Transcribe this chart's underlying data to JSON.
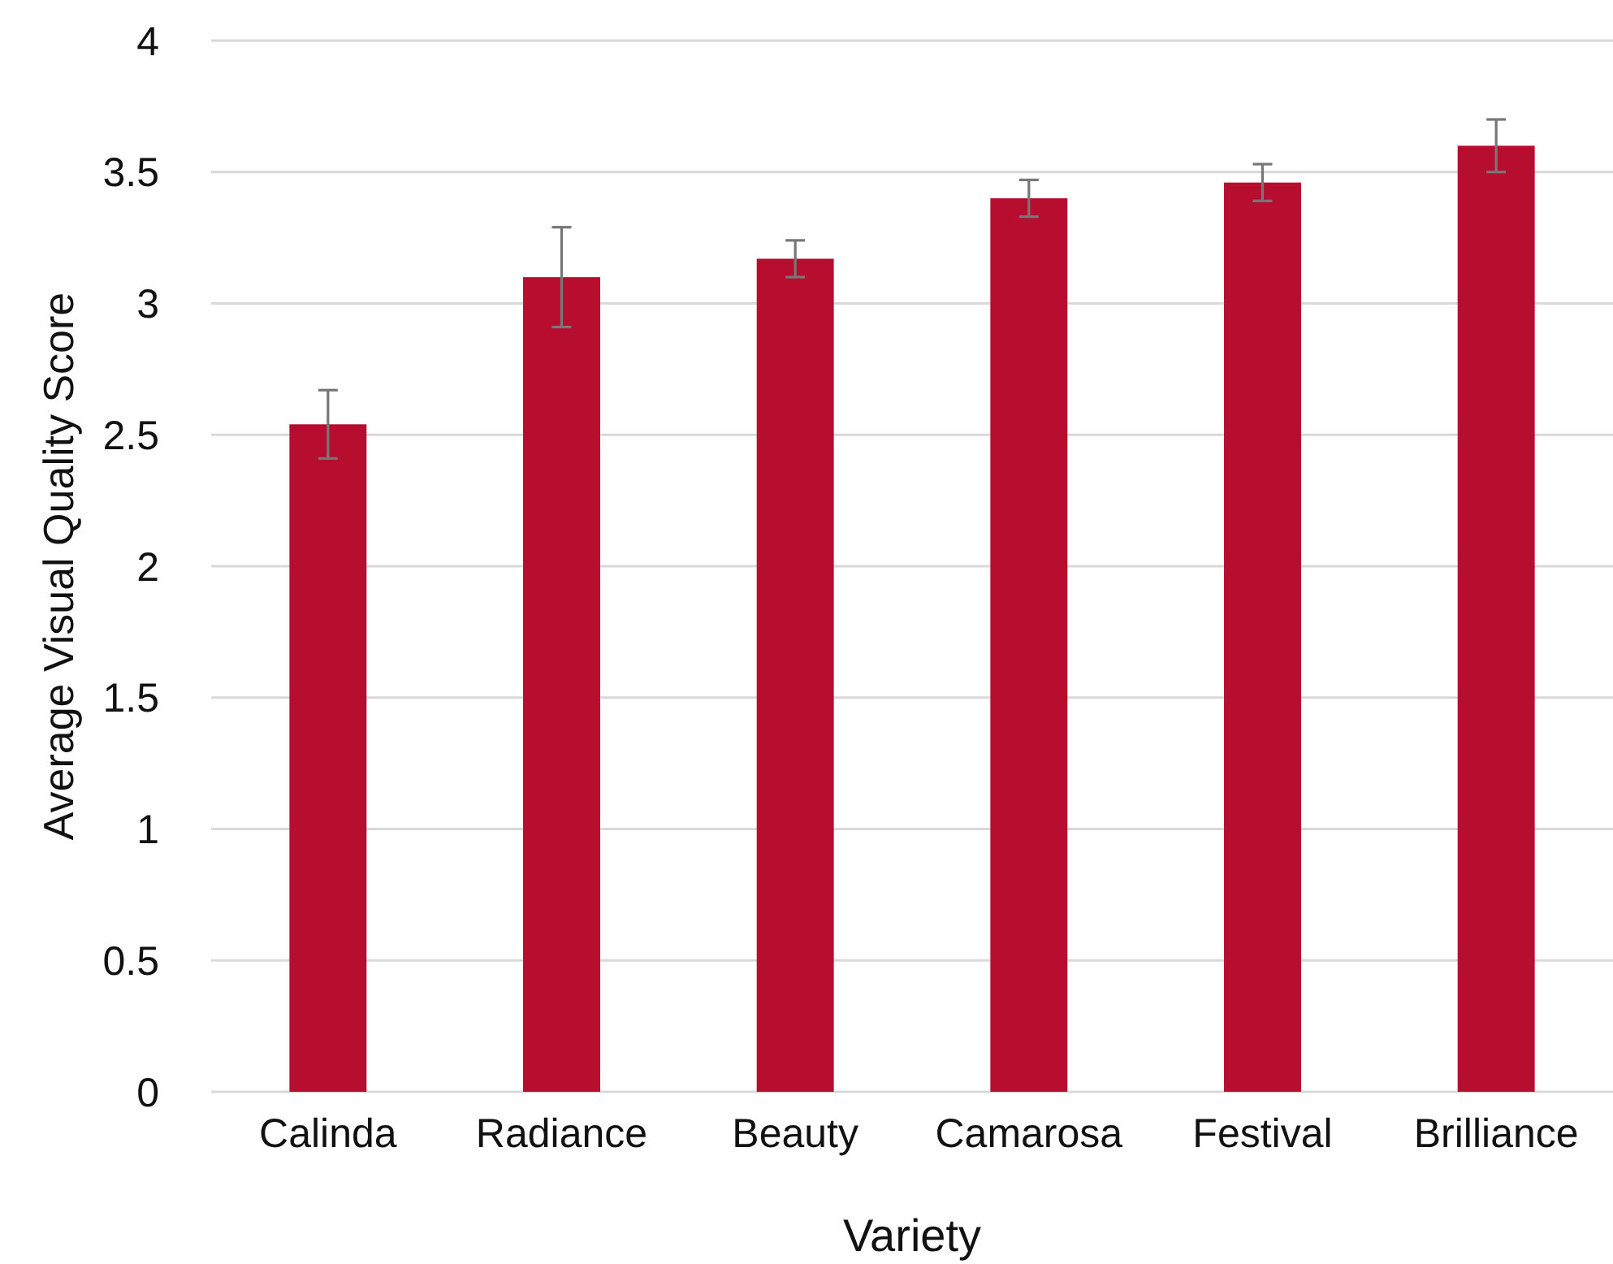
{
  "chart_data": {
    "type": "bar",
    "xlabel": "Variety",
    "ylabel": "Average Visual Quality Score",
    "categories": [
      "Calinda",
      "Radiance",
      "Beauty",
      "Camarosa",
      "Festival",
      "Brilliance"
    ],
    "values": [
      2.54,
      3.1,
      3.17,
      3.4,
      3.46,
      3.6
    ],
    "errors": [
      0.13,
      0.19,
      0.07,
      0.07,
      0.07,
      0.1
    ],
    "color": "#b70d2f",
    "ylim": [
      0,
      4
    ],
    "yticks": [
      0,
      0.5,
      1,
      1.5,
      2,
      2.5,
      3,
      3.5,
      4
    ],
    "grid": "y"
  }
}
